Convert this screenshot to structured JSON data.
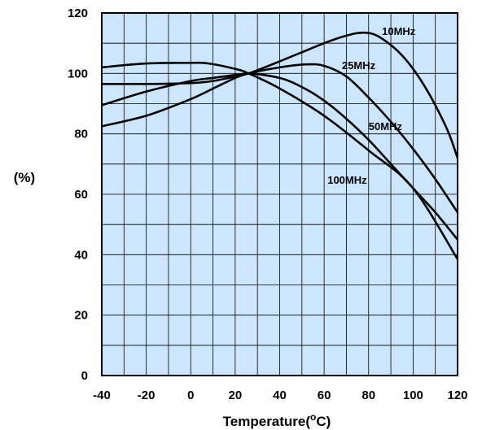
{
  "chart_data": {
    "type": "line",
    "title": "",
    "xlabel": "Temperature(°C)",
    "xlabel_main": "Temperature(",
    "xlabel_sup": "o",
    "xlabel_tail": "C)",
    "ylabel": "(%)",
    "xlim": [
      -40,
      120
    ],
    "ylim": [
      0,
      120
    ],
    "x_ticks": [
      -40,
      -20,
      0,
      20,
      40,
      60,
      80,
      100,
      120
    ],
    "y_ticks": [
      0,
      20,
      40,
      60,
      80,
      100,
      120
    ],
    "x_tick_labels": [
      "-40",
      "-20",
      "0",
      "20",
      "40",
      "60",
      "80",
      "100",
      "120"
    ],
    "y_tick_labels": [
      "0",
      "20",
      "40",
      "60",
      "80",
      "100",
      "120"
    ],
    "grid": true,
    "plot_background": "#cce6ff",
    "grid_color": "#000000",
    "line_color": "#000000",
    "legend": "none",
    "series": [
      {
        "name": "10MHz",
        "x": [
          -40,
          -20,
          0,
          10,
          20,
          26,
          40,
          60,
          70,
          78,
          85,
          95,
          105,
          115,
          120
        ],
        "y": [
          89.5,
          94,
          97.5,
          98.5,
          99.5,
          100,
          104,
          110,
          112.5,
          113.5,
          112,
          106,
          96,
          82,
          72
        ]
      },
      {
        "name": "25MHz",
        "x": [
          -40,
          -20,
          0,
          10,
          20,
          26,
          40,
          52,
          60,
          70,
          80,
          90,
          100,
          110,
          120
        ],
        "y": [
          82.5,
          86,
          91.5,
          95,
          98.5,
          100,
          102,
          103,
          102.5,
          99,
          92,
          84,
          75,
          65,
          54
        ]
      },
      {
        "name": "50MHz",
        "x": [
          -40,
          -20,
          0,
          10,
          20,
          26,
          40,
          50,
          60,
          70,
          80,
          90,
          100,
          110,
          120
        ],
        "y": [
          96.5,
          96.5,
          96.8,
          97.5,
          99,
          100,
          98.5,
          95.5,
          91,
          85,
          78,
          70,
          62,
          54,
          45
        ]
      },
      {
        "name": "100MHz",
        "x": [
          -40,
          -20,
          0,
          8,
          20,
          26,
          40,
          60,
          80,
          100,
          120
        ],
        "y": [
          102,
          103.3,
          103.5,
          103.3,
          101.5,
          100,
          95,
          86,
          74.5,
          62,
          38.5
        ]
      }
    ],
    "annotations": [
      {
        "text": "10MHz",
        "x": 86,
        "y": 112.8
      },
      {
        "text": "25MHz",
        "x": 68,
        "y": 101.5
      },
      {
        "text": "50MHz",
        "x": 80,
        "y": 81.2
      },
      {
        "text": "100MHz",
        "x": 61.5,
        "y": 63.5
      }
    ]
  }
}
